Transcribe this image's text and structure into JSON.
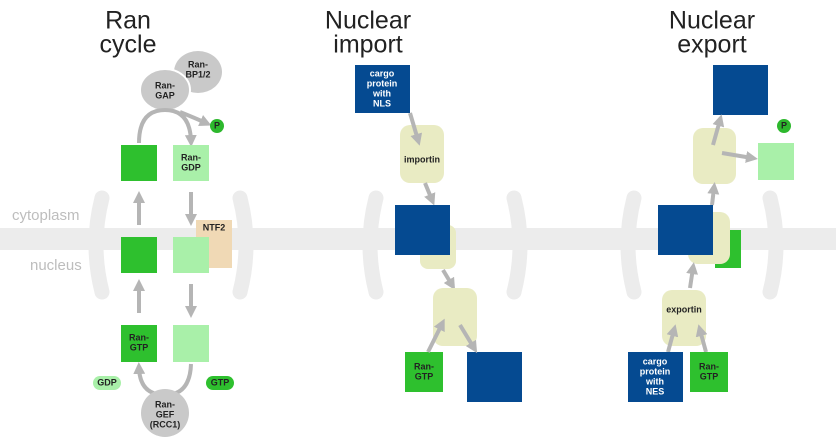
{
  "titles": [
    [
      "Ran",
      "cycle"
    ],
    [
      "Nuclear",
      "import"
    ],
    [
      "Nuclear",
      "export"
    ]
  ],
  "compartments": {
    "cytoplasm": "cytoplasm",
    "nucleus": "nucleus"
  },
  "ran_cycle": {
    "ran_bp": [
      "Ran-",
      "BP1/2"
    ],
    "ran_gap": [
      "Ran-",
      "GAP"
    ],
    "phosphate": "P",
    "ran_gdp": [
      "Ran-",
      "GDP"
    ],
    "ntf2": "NTF2",
    "ran_gtp": [
      "Ran-",
      "GTP"
    ],
    "gdp": "GDP",
    "gtp": "GTP",
    "ran_gef": [
      "Ran-",
      "GEF",
      "(RCC1)"
    ]
  },
  "nuclear_import": {
    "cargo": [
      "cargo",
      "protein",
      "with",
      "NLS"
    ],
    "importin": "importin",
    "ran_gtp": [
      "Ran-",
      "GTP"
    ]
  },
  "nuclear_export": {
    "cargo": [
      "cargo",
      "protein",
      "with",
      "NES"
    ],
    "exportin": "exportin",
    "ran_gtp": [
      "Ran-",
      "GTP"
    ],
    "phosphate": "P"
  }
}
